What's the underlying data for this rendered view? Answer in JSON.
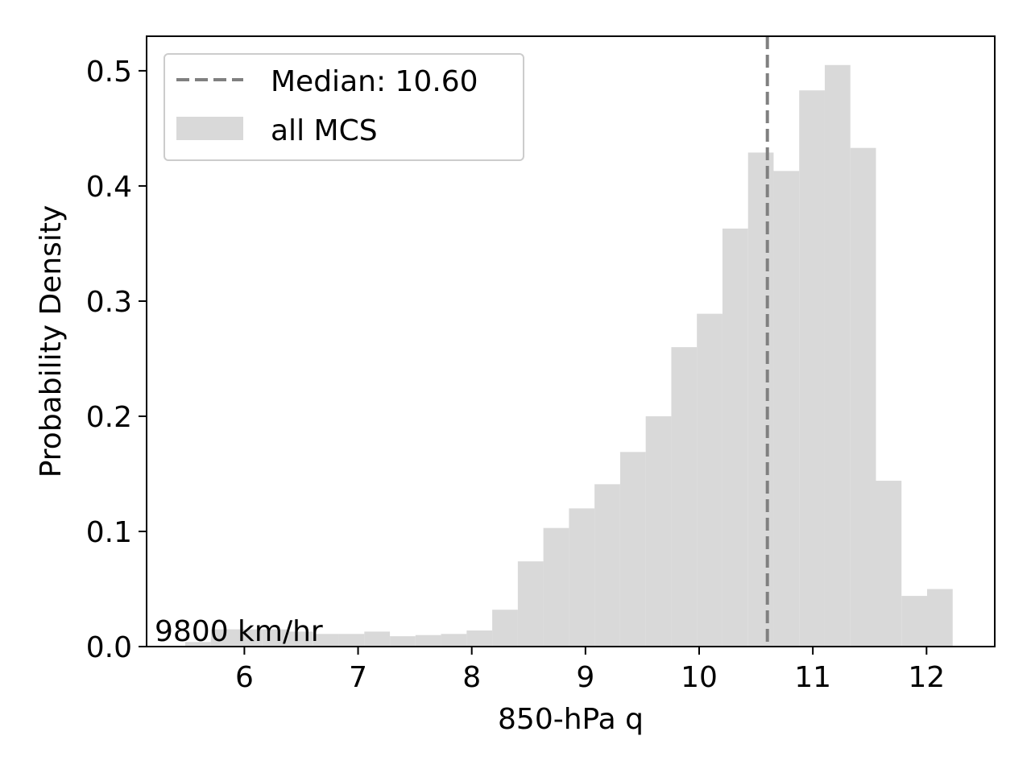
{
  "chart_data": {
    "type": "bar",
    "subtype": "histogram",
    "xlabel": "850-hPa q",
    "ylabel": "Probability Density",
    "xlim": [
      5.14,
      12.6
    ],
    "ylim": [
      0,
      0.53
    ],
    "xticks": [
      6,
      7,
      8,
      9,
      10,
      11,
      12
    ],
    "xtick_labels": [
      "6",
      "7",
      "8",
      "9",
      "10",
      "11",
      "12"
    ],
    "yticks": [
      0.0,
      0.1,
      0.2,
      0.3,
      0.4,
      0.5
    ],
    "ytick_labels": [
      "0.0",
      "0.1",
      "0.2",
      "0.3",
      "0.4",
      "0.5"
    ],
    "grid": false,
    "legend_position": "top-left",
    "series": [
      {
        "name": "all MCS",
        "color": "#d9d9d9",
        "bin_edges": [
          5.48,
          5.705,
          5.93,
          6.155,
          6.38,
          6.605,
          6.83,
          7.055,
          7.28,
          7.505,
          7.73,
          7.955,
          8.18,
          8.405,
          8.63,
          8.855,
          9.08,
          9.305,
          9.53,
          9.755,
          9.98,
          10.205,
          10.43,
          10.655,
          10.88,
          11.105,
          11.33,
          11.555,
          11.78,
          12.005,
          12.23
        ],
        "values": [
          0.004,
          0.015,
          0.015,
          0.015,
          0.013,
          0.011,
          0.011,
          0.013,
          0.009,
          0.01,
          0.011,
          0.014,
          0.032,
          0.074,
          0.103,
          0.12,
          0.141,
          0.169,
          0.2,
          0.26,
          0.289,
          0.363,
          0.429,
          0.413,
          0.483,
          0.505,
          0.433,
          0.144,
          0.044,
          0.05
        ]
      }
    ],
    "reference_lines": [
      {
        "name": "Median: 10.60",
        "x": 10.6,
        "color": "#808080",
        "style": "dashed"
      }
    ],
    "annotation": "9800 km/hr"
  }
}
